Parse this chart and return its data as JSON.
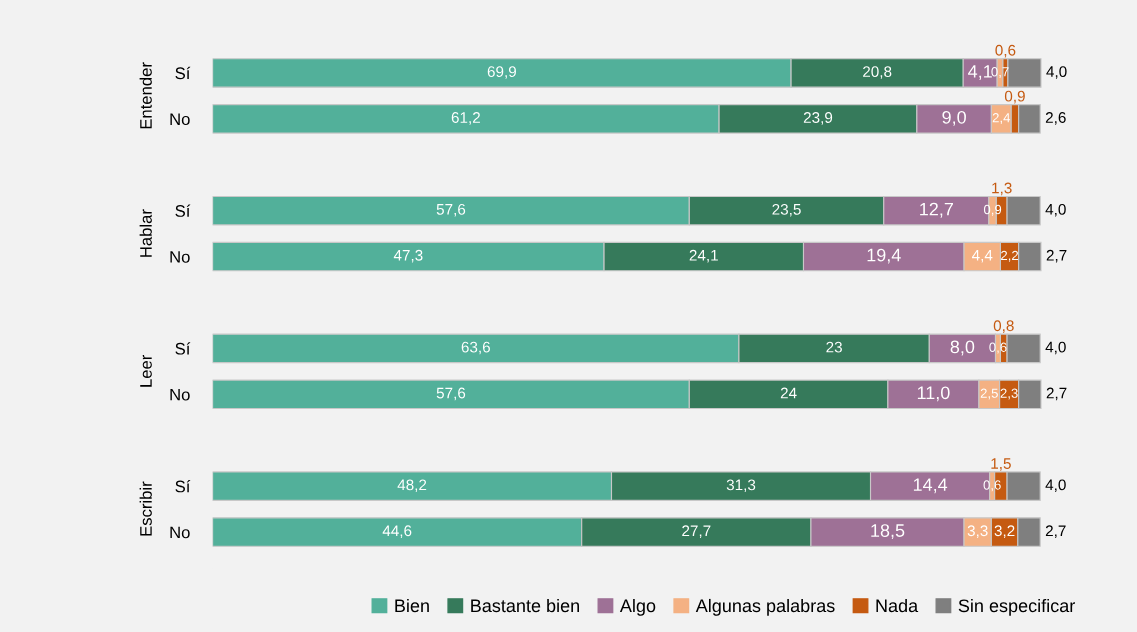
{
  "chart_data": {
    "type": "bar",
    "orientation": "horizontal",
    "stacked": true,
    "categories": [
      "Sí",
      "No",
      "Sí",
      "No",
      "Sí",
      "No",
      "Sí",
      "No"
    ],
    "annotations": [
      "Entender",
      "Hablar",
      "Leer",
      "Escribir"
    ],
    "series": [
      {
        "name": "Bien",
        "color": "#52b09a",
        "values": [
          69.9,
          61.2,
          57.6,
          47.3,
          63.6,
          57.6,
          48.2,
          44.6
        ],
        "value_labels": [
          "69,9",
          "61,2",
          "57,6",
          "47,3",
          "63,6",
          "57,6",
          "48,2",
          "44,6"
        ]
      },
      {
        "name": "Bastante bien",
        "color": "#367a5b",
        "values": [
          20.8,
          23.9,
          23.5,
          24.1,
          23,
          24,
          31.3,
          27.7
        ],
        "value_labels": [
          "20,8",
          "23,9",
          "23,5",
          "24,1",
          "23",
          "24",
          "31,3",
          "27,7"
        ]
      },
      {
        "name": "Algo",
        "color": "#9e7196",
        "values": [
          4.1,
          9.0,
          12.7,
          19.4,
          8.0,
          11.0,
          14.4,
          18.5
        ],
        "value_labels": [
          "4,1",
          "9,0",
          "12,7",
          "19,4",
          "8,0",
          "11,0",
          "14,4",
          "18,5"
        ]
      },
      {
        "name": "Algunas palabras",
        "color": "#f4b183",
        "values": [
          0.7,
          2.4,
          0.9,
          4.4,
          0.6,
          2.5,
          0.6,
          3.3
        ],
        "value_labels": [
          "0,7",
          "2,4",
          "0,9",
          "4,4",
          "0,6",
          "2,5",
          "0,6",
          "3,3"
        ]
      },
      {
        "name": "Nada",
        "color": "#c55a11",
        "values": [
          0.6,
          0.9,
          1.3,
          2.2,
          0.8,
          2.3,
          1.5,
          3.2
        ],
        "value_labels": [
          "0,6",
          "0,9",
          "1,3",
          "2,2",
          "0,8",
          "2,3",
          "1,5",
          "3,2"
        ]
      },
      {
        "name": "Sin especificar",
        "color": "#7f7f7f",
        "values": [
          4.0,
          2.6,
          4.0,
          2.7,
          4.0,
          2.7,
          4.0,
          2.7
        ],
        "value_labels": [
          "4,0",
          "2,6",
          "4,0",
          "2,7",
          "4,0",
          "2,7",
          "4,0",
          "2,7"
        ]
      }
    ],
    "legend": "bottom right"
  }
}
